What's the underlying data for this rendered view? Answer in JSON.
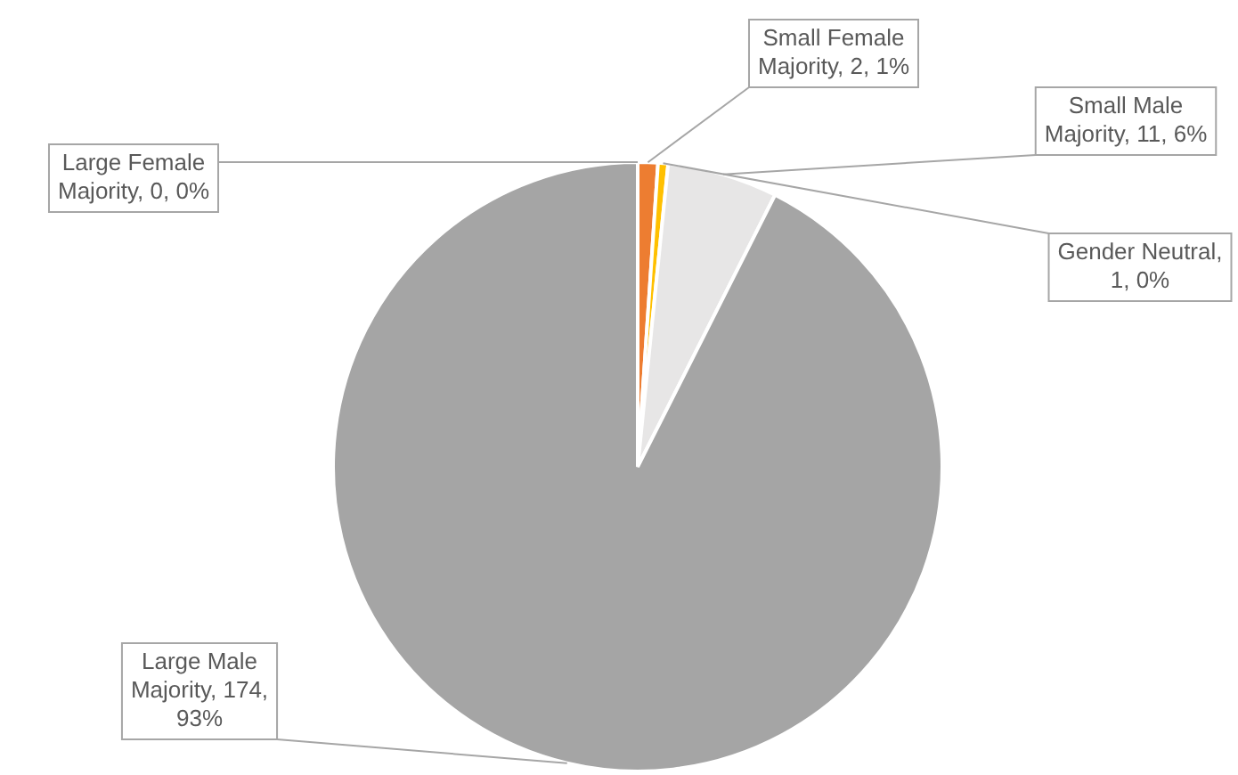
{
  "chart_data": {
    "type": "pie",
    "categories": [
      "Large Female Majority",
      "Small Female Majority",
      "Gender Neutral",
      "Small Male Majority",
      "Large Male Majority"
    ],
    "values": [
      0,
      2,
      1,
      11,
      174
    ],
    "colors": [
      "#5b9bd5",
      "#ed7d31",
      "#ffc000",
      "#e7e6e6",
      "#a5a5a5"
    ],
    "value_labels": [
      ", 0, 0%",
      ", 2, 1%",
      ", 1, 0%",
      ", 11, 6%",
      ", 174, 93%"
    ],
    "legend": false
  }
}
